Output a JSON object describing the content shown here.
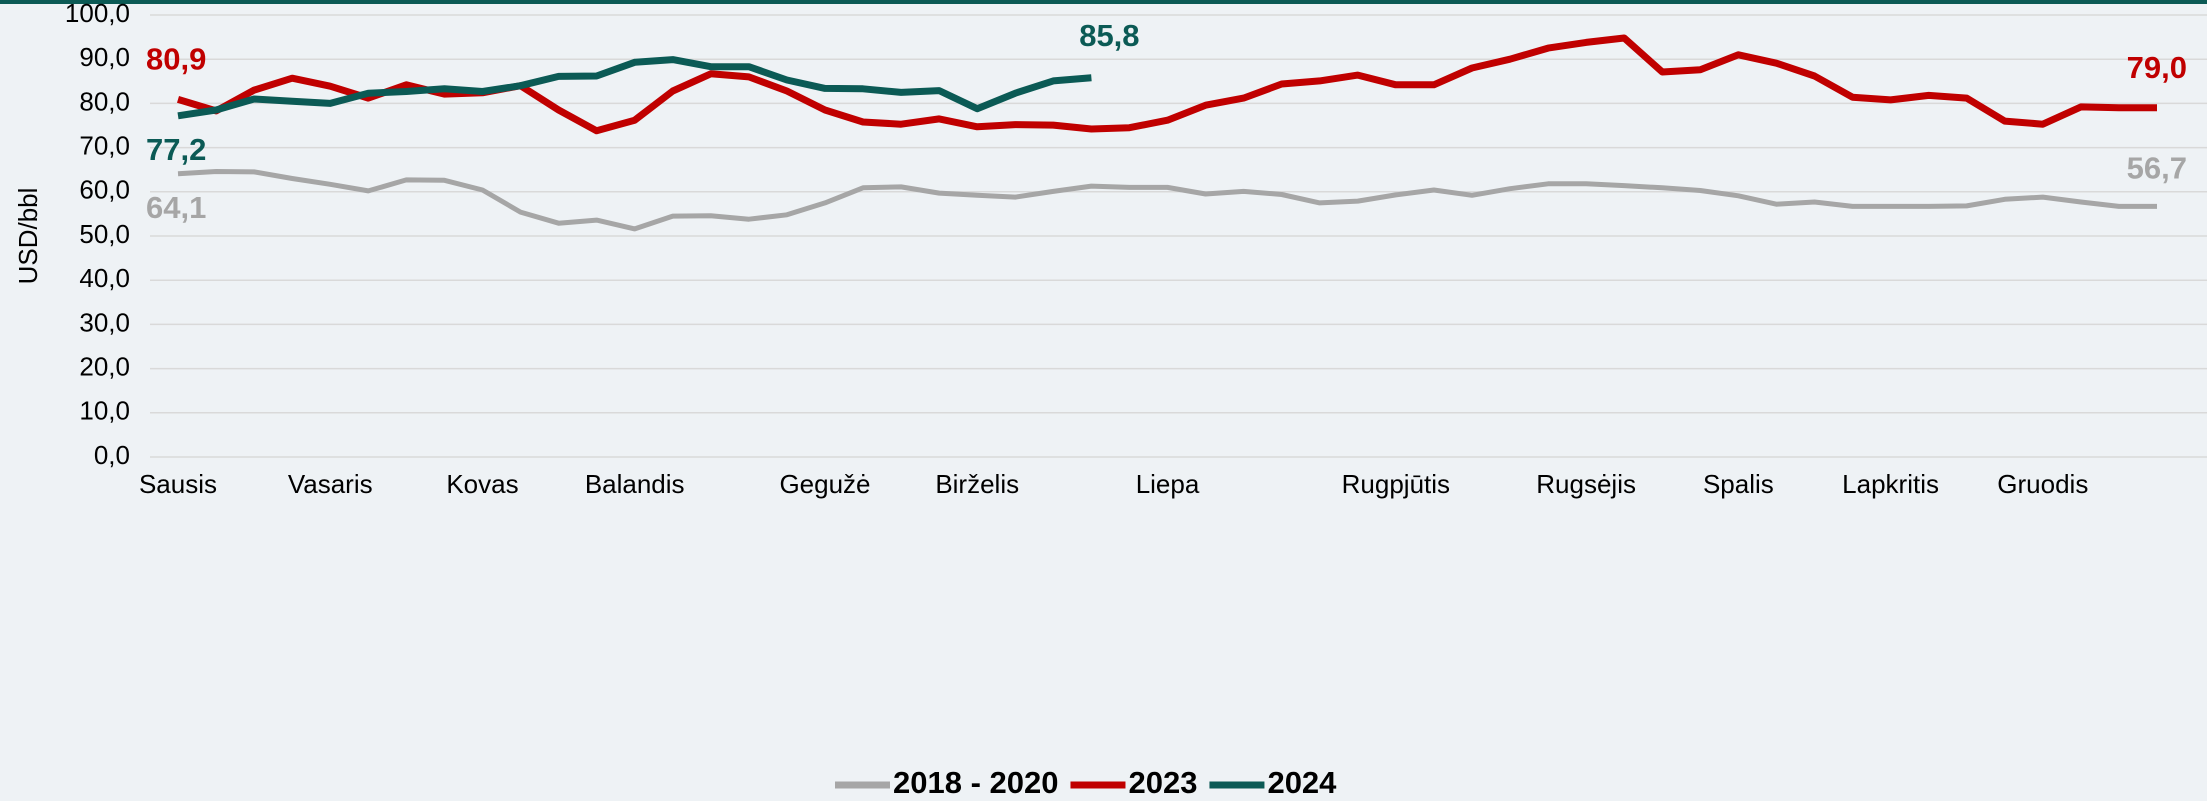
{
  "chart_data": {
    "type": "line",
    "y_label": "USD/bbl",
    "ylim": [
      0,
      100
    ],
    "yticks": [
      {
        "value": 0,
        "label": "0,0"
      },
      {
        "value": 10,
        "label": "10,0"
      },
      {
        "value": 20,
        "label": "20,0"
      },
      {
        "value": 30,
        "label": "30,0"
      },
      {
        "value": 40,
        "label": "40,0"
      },
      {
        "value": 50,
        "label": "50,0"
      },
      {
        "value": 60,
        "label": "60,0"
      },
      {
        "value": 70,
        "label": "70,0"
      },
      {
        "value": 80,
        "label": "80,0"
      },
      {
        "value": 90,
        "label": "90,0"
      },
      {
        "value": 100,
        "label": "100,0"
      }
    ],
    "grid": true,
    "legend": "bottom",
    "categories": [
      "Sausis",
      null,
      null,
      null,
      "Vasaris",
      null,
      null,
      null,
      "Kovas",
      null,
      null,
      null,
      "Balandis",
      null,
      null,
      null,
      null,
      "Gegužė",
      null,
      null,
      null,
      "Birželis",
      null,
      null,
      null,
      null,
      "Liepa",
      null,
      null,
      null,
      null,
      null,
      "Rugpjūtis",
      null,
      null,
      null,
      null,
      "Rugsėjis",
      null,
      null,
      null,
      "Spalis",
      null,
      null,
      null,
      "Lapkritis",
      null,
      null,
      null,
      "Gruodis",
      null,
      null,
      null
    ],
    "series": [
      {
        "name": "2018 - 2020",
        "color": "#a6a6a6",
        "values": [
          64.1,
          64.6,
          64.5,
          63.0,
          61.7,
          60.2,
          62.7,
          62.6,
          60.4,
          55.4,
          52.9,
          53.6,
          51.6,
          54.5,
          54.6,
          53.8,
          54.8,
          57.5,
          60.9,
          61.1,
          59.7,
          59.2,
          58.8,
          60.1,
          61.3,
          61.0,
          61.0,
          59.5,
          60.1,
          59.4,
          57.5,
          57.9,
          59.3,
          60.4,
          59.2,
          60.7,
          61.8,
          61.8,
          61.4,
          60.9,
          60.3,
          59.1,
          57.2,
          57.7,
          56.7,
          56.7,
          56.7,
          56.8,
          58.3,
          58.8,
          57.7,
          56.7,
          56.7
        ],
        "value_labels": [
          "64,1",
          null,
          null,
          null,
          null,
          null,
          null,
          null,
          null,
          null,
          null,
          null,
          null,
          null,
          null,
          null,
          null,
          null,
          null,
          null,
          null,
          null,
          null,
          null,
          null,
          null,
          null,
          null,
          null,
          null,
          null,
          null,
          null,
          null,
          null,
          null,
          null,
          null,
          null,
          null,
          null,
          null,
          null,
          null,
          null,
          null,
          null,
          null,
          null,
          null,
          null,
          null,
          "56,7"
        ]
      },
      {
        "name": "2023",
        "color": "#c00000",
        "values": [
          80.9,
          78.3,
          83.0,
          85.7,
          83.9,
          81.2,
          84.2,
          82.1,
          82.4,
          84.0,
          78.5,
          73.8,
          76.2,
          82.8,
          86.7,
          86.0,
          82.8,
          78.5,
          75.8,
          75.3,
          76.5,
          74.7,
          75.2,
          75.1,
          74.2,
          74.5,
          76.2,
          79.6,
          81.2,
          84.4,
          85.1,
          86.4,
          84.2,
          84.2,
          88.0,
          90.0,
          92.5,
          93.8,
          94.8,
          87.1,
          87.6,
          91.0,
          89.1,
          86.2,
          81.4,
          80.8,
          81.8,
          81.2,
          76.0,
          75.3,
          79.2,
          79.0,
          79.0
        ],
        "value_labels": [
          "80,9",
          null,
          null,
          null,
          null,
          null,
          null,
          null,
          null,
          null,
          null,
          null,
          null,
          null,
          null,
          null,
          null,
          null,
          null,
          null,
          null,
          null,
          null,
          null,
          null,
          null,
          null,
          null,
          null,
          null,
          null,
          null,
          null,
          null,
          null,
          null,
          null,
          null,
          null,
          null,
          null,
          null,
          null,
          null,
          null,
          null,
          null,
          null,
          null,
          null,
          null,
          null,
          "79,0"
        ]
      },
      {
        "name": "2024",
        "color": "#0b5a55",
        "values": [
          77.2,
          78.5,
          81.0,
          80.5,
          80.0,
          82.3,
          82.7,
          83.3,
          82.7,
          84.0,
          86.1,
          86.2,
          89.3,
          89.9,
          88.3,
          88.3,
          85.3,
          83.4,
          83.3,
          82.5,
          82.9,
          78.8,
          82.3,
          85.1,
          85.8,
          null,
          null,
          null,
          null,
          null,
          null,
          null,
          null,
          null,
          null,
          null,
          null,
          null,
          null,
          null,
          null,
          null,
          null,
          null,
          null,
          null,
          null,
          null,
          null,
          null,
          null,
          null,
          null
        ],
        "value_labels": [
          "77,2",
          null,
          null,
          null,
          null,
          null,
          null,
          null,
          null,
          null,
          null,
          null,
          null,
          null,
          null,
          null,
          null,
          null,
          null,
          null,
          null,
          null,
          null,
          null,
          "85,8",
          null,
          null,
          null,
          null,
          null,
          null,
          null,
          null,
          null,
          null,
          null,
          null,
          null,
          null,
          null,
          null,
          null,
          null,
          null,
          null,
          null,
          null,
          null,
          null,
          null,
          null,
          null,
          null
        ]
      }
    ]
  }
}
